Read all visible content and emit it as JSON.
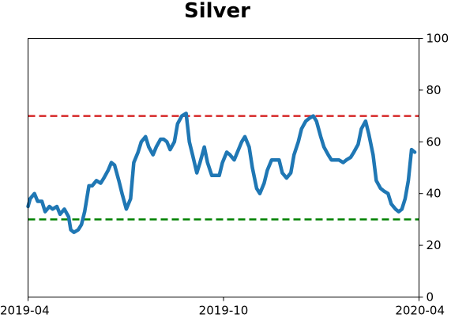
{
  "chart_data": {
    "type": "line",
    "title": "Silver",
    "xlabel": "",
    "ylabel": "",
    "ylim": [
      0,
      100
    ],
    "yticks": [
      0,
      20,
      40,
      60,
      80,
      100
    ],
    "y_axis_side": "right",
    "xlim": [
      "2019-04-01",
      "2020-04-01"
    ],
    "xticks": [
      {
        "date": "2019-04-01",
        "label": "2019-04"
      },
      {
        "date": "2019-10-01",
        "label": "2019-10"
      },
      {
        "date": "2020-04-01",
        "label": "2020-04"
      }
    ],
    "grid": false,
    "series": [
      {
        "color": "#1f77b4",
        "points": [
          [
            "2019-04-01",
            35
          ],
          [
            "2019-04-03",
            38
          ],
          [
            "2019-04-07",
            40
          ],
          [
            "2019-04-10",
            37
          ],
          [
            "2019-04-14",
            37
          ],
          [
            "2019-04-17",
            33
          ],
          [
            "2019-04-21",
            35
          ],
          [
            "2019-04-24",
            34
          ],
          [
            "2019-04-28",
            35
          ],
          [
            "2019-05-01",
            32
          ],
          [
            "2019-05-05",
            34
          ],
          [
            "2019-05-09",
            31
          ],
          [
            "2019-05-11",
            26
          ],
          [
            "2019-05-14",
            25
          ],
          [
            "2019-05-18",
            26
          ],
          [
            "2019-05-21",
            28
          ],
          [
            "2019-05-24",
            33
          ],
          [
            "2019-05-28",
            43
          ],
          [
            "2019-05-31",
            43
          ],
          [
            "2019-06-04",
            45
          ],
          [
            "2019-06-08",
            44
          ],
          [
            "2019-06-11",
            46
          ],
          [
            "2019-06-15",
            49
          ],
          [
            "2019-06-18",
            52
          ],
          [
            "2019-06-21",
            51
          ],
          [
            "2019-06-25",
            45
          ],
          [
            "2019-06-28",
            40
          ],
          [
            "2019-07-02",
            34
          ],
          [
            "2019-07-06",
            38
          ],
          [
            "2019-07-09",
            52
          ],
          [
            "2019-07-13",
            56
          ],
          [
            "2019-07-16",
            60
          ],
          [
            "2019-07-20",
            62
          ],
          [
            "2019-07-23",
            58
          ],
          [
            "2019-07-27",
            55
          ],
          [
            "2019-07-30",
            58
          ],
          [
            "2019-08-03",
            61
          ],
          [
            "2019-08-06",
            61
          ],
          [
            "2019-08-09",
            60
          ],
          [
            "2019-08-12",
            57
          ],
          [
            "2019-08-16",
            60
          ],
          [
            "2019-08-19",
            67
          ],
          [
            "2019-08-23",
            70
          ],
          [
            "2019-08-27",
            71
          ],
          [
            "2019-08-30",
            60
          ],
          [
            "2019-09-02",
            55
          ],
          [
            "2019-09-06",
            48
          ],
          [
            "2019-09-09",
            52
          ],
          [
            "2019-09-13",
            58
          ],
          [
            "2019-09-16",
            52
          ],
          [
            "2019-09-20",
            47
          ],
          [
            "2019-09-23",
            47
          ],
          [
            "2019-09-27",
            47
          ],
          [
            "2019-09-30",
            52
          ],
          [
            "2019-10-04",
            56
          ],
          [
            "2019-10-07",
            55
          ],
          [
            "2019-10-11",
            53
          ],
          [
            "2019-10-14",
            56
          ],
          [
            "2019-10-18",
            60
          ],
          [
            "2019-10-21",
            62
          ],
          [
            "2019-10-25",
            58
          ],
          [
            "2019-10-28",
            50
          ],
          [
            "2019-11-01",
            42
          ],
          [
            "2019-11-04",
            40
          ],
          [
            "2019-11-08",
            44
          ],
          [
            "2019-11-11",
            49
          ],
          [
            "2019-11-15",
            53
          ],
          [
            "2019-11-18",
            53
          ],
          [
            "2019-11-22",
            53
          ],
          [
            "2019-11-25",
            48
          ],
          [
            "2019-11-29",
            46
          ],
          [
            "2019-12-03",
            48
          ],
          [
            "2019-12-06",
            55
          ],
          [
            "2019-12-10",
            60
          ],
          [
            "2019-12-13",
            65
          ],
          [
            "2019-12-17",
            68
          ],
          [
            "2019-12-20",
            69
          ],
          [
            "2019-12-24",
            70
          ],
          [
            "2019-12-27",
            68
          ],
          [
            "2019-12-31",
            62
          ],
          [
            "2020-01-03",
            58
          ],
          [
            "2020-01-07",
            55
          ],
          [
            "2020-01-10",
            53
          ],
          [
            "2020-01-14",
            53
          ],
          [
            "2020-01-17",
            53
          ],
          [
            "2020-01-21",
            52
          ],
          [
            "2020-01-24",
            53
          ],
          [
            "2020-01-28",
            54
          ],
          [
            "2020-01-31",
            56
          ],
          [
            "2020-02-04",
            59
          ],
          [
            "2020-02-07",
            65
          ],
          [
            "2020-02-11",
            68
          ],
          [
            "2020-02-14",
            63
          ],
          [
            "2020-02-18",
            55
          ],
          [
            "2020-02-21",
            45
          ],
          [
            "2020-02-25",
            42
          ],
          [
            "2020-02-28",
            41
          ],
          [
            "2020-03-03",
            40
          ],
          [
            "2020-03-06",
            36
          ],
          [
            "2020-03-10",
            34
          ],
          [
            "2020-03-13",
            33
          ],
          [
            "2020-03-16",
            34
          ],
          [
            "2020-03-19",
            38
          ],
          [
            "2020-03-22",
            45
          ],
          [
            "2020-03-25",
            57
          ],
          [
            "2020-03-28",
            56
          ]
        ]
      }
    ],
    "reference_lines": [
      {
        "y": 70,
        "color": "#d62728",
        "style": "dashed"
      },
      {
        "y": 30,
        "color": "#008000",
        "style": "dashed"
      }
    ]
  }
}
